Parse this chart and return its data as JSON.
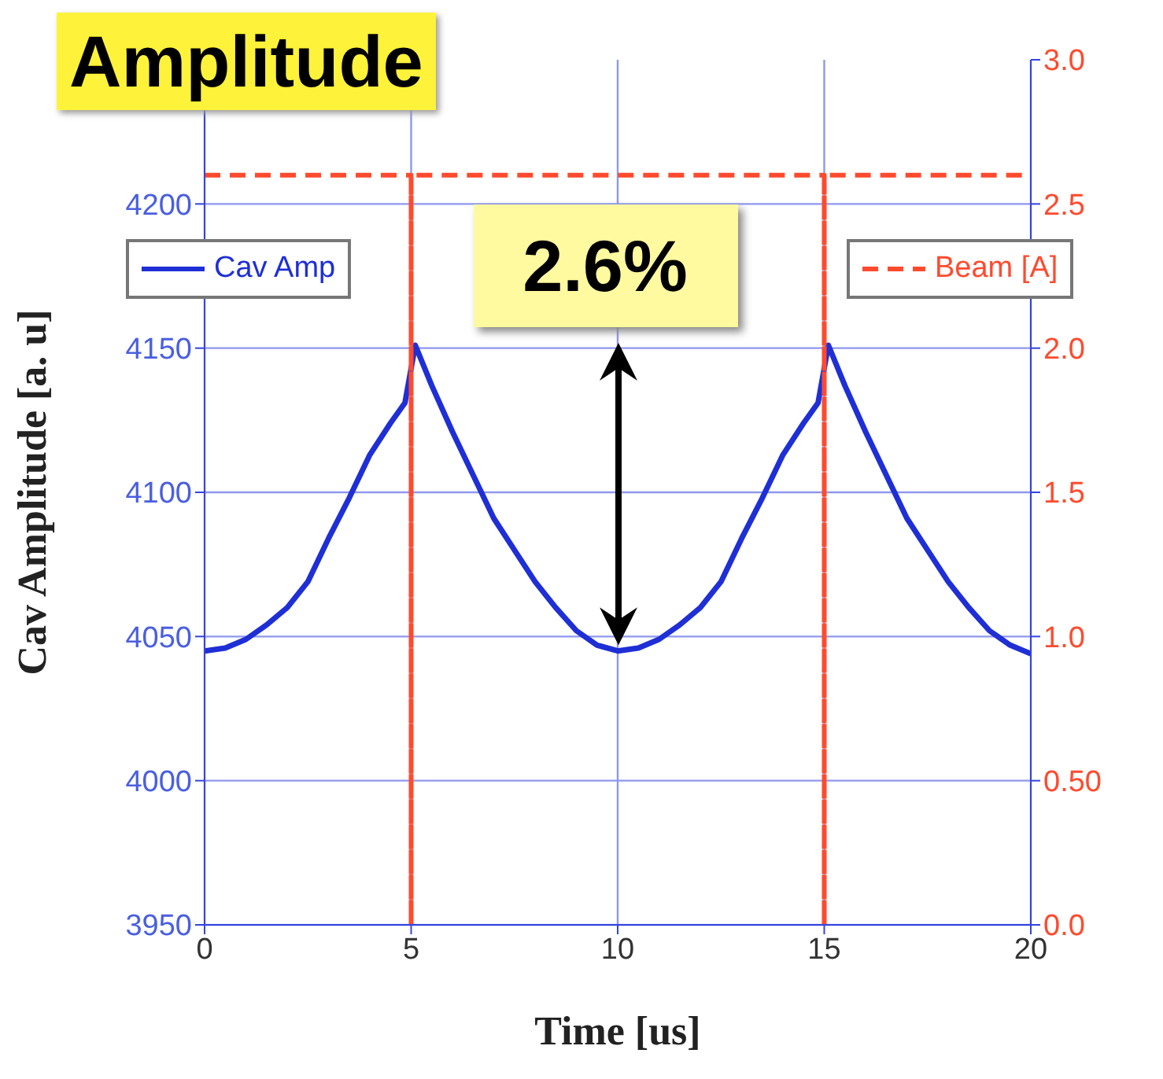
{
  "chart_data": {
    "type": "line",
    "title": "Amplitude",
    "xlabel": "Time [us]",
    "ylabel": "Cav Amplitude [a. u]",
    "xlim": [
      0,
      20
    ],
    "xticks": [
      0,
      5,
      10,
      15,
      20
    ],
    "ylim": [
      3950,
      4250
    ],
    "yticks": [
      3950,
      4000,
      4050,
      4100,
      4150,
      4200
    ],
    "y2lim": [
      0,
      3
    ],
    "y2ticks": [
      {
        "value": 0,
        "label": "0.0"
      },
      {
        "value": 0.5,
        "label": "0.50"
      },
      {
        "value": 1,
        "label": "1.0"
      },
      {
        "value": 1.5,
        "label": "1.5"
      },
      {
        "value": 2,
        "label": "2.0"
      },
      {
        "value": 2.5,
        "label": "2.5"
      },
      {
        "value": 3,
        "label": "3.0"
      }
    ],
    "grid": true,
    "legend": "top",
    "line_style": "solid",
    "marker": "none",
    "series": [
      {
        "name": "Cav Amp",
        "color": "#1f2fd6",
        "x": [
          0,
          0.5,
          1,
          1.5,
          2,
          2.5,
          3,
          3.5,
          4,
          4.5,
          4.85,
          5.1,
          5.5,
          6,
          6.5,
          7,
          7.5,
          8,
          8.5,
          9,
          9.5,
          10,
          10.5,
          11,
          11.5,
          12,
          12.5,
          13,
          13.5,
          14,
          14.5,
          14.85,
          15.1,
          15.5,
          16,
          16.5,
          17,
          17.5,
          18,
          18.5,
          19,
          19.5,
          20
        ],
        "values": [
          4045,
          4046,
          4049,
          4054,
          4060,
          4069,
          4084,
          4098,
          4113,
          4124,
          4131,
          4151,
          4137,
          4121,
          4106,
          4091,
          4080,
          4069,
          4060,
          4052,
          4047,
          4045,
          4046,
          4049,
          4054,
          4060,
          4069,
          4084,
          4098,
          4113,
          4124,
          4131,
          4151,
          4137,
          4121,
          4106,
          4091,
          4080,
          4069,
          4060,
          4052,
          4047,
          4044
        ]
      },
      {
        "name": "Beam [A]",
        "color": "#ff4a2e",
        "axis": "y2",
        "line_style": "dashed",
        "x": [
          0,
          5,
          5,
          5,
          15,
          15,
          15,
          20
        ],
        "values": [
          2.6,
          2.6,
          0,
          2.6,
          2.6,
          0,
          2.6,
          2.6
        ]
      }
    ],
    "annotations": [
      "2.6%"
    ]
  }
}
